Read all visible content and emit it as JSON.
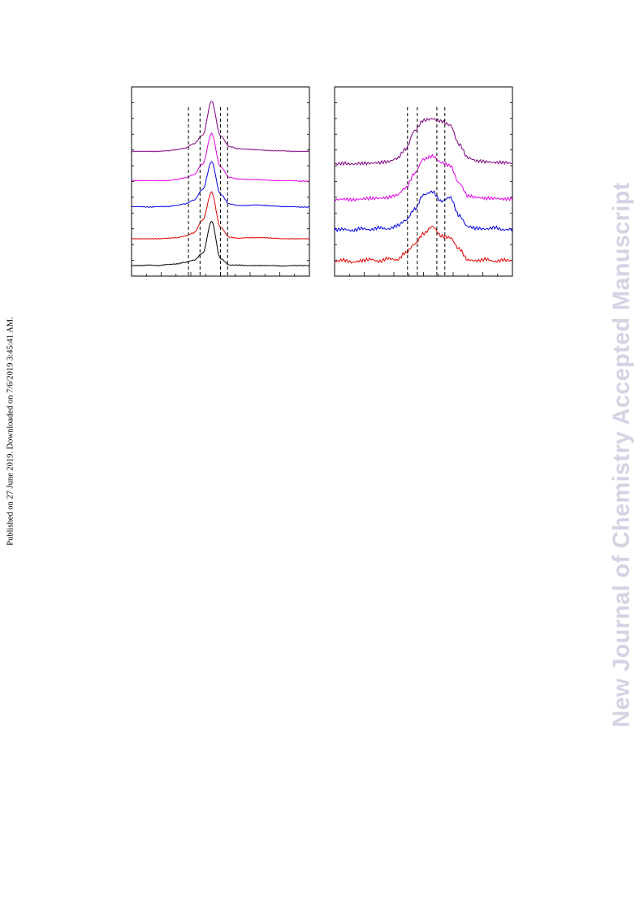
{
  "side_note": "Published on 27 June 2019. Downloaded on 7/6/2019 3:45:41 AM.",
  "watermark": "New Journal of Chemistry Accepted Manuscript",
  "chart_data": [
    {
      "type": "line",
      "title": "",
      "xlabel": "",
      "ylabel": "",
      "x": [
        0,
        5,
        10,
        15,
        20,
        25,
        30,
        35,
        40,
        45,
        50,
        55,
        60,
        65,
        70,
        75,
        80,
        85,
        90,
        95,
        100
      ],
      "reference_lines_x": [
        32,
        38.5,
        50,
        54
      ],
      "grid": false,
      "legend": "none",
      "series": [
        {
          "color": "#000000",
          "values": [
            0.3,
            0.3,
            0.4,
            0.3,
            0.5,
            0.6,
            0.9,
            1.3,
            2.6,
            8.6,
            1.6,
            0.4,
            0.4,
            0.3,
            0.3,
            0.3,
            0.3,
            0.2,
            0.3,
            0.3,
            0.3
          ]
        },
        {
          "color": "#e00000",
          "values": [
            0.3,
            0.3,
            0.3,
            0.3,
            0.4,
            0.5,
            0.8,
            1.4,
            3.8,
            9.0,
            2.4,
            0.6,
            0.4,
            0.5,
            0.5,
            0.5,
            0.4,
            0.3,
            0.3,
            0.3,
            0.3
          ]
        },
        {
          "color": "#0000e0",
          "values": [
            0.4,
            0.4,
            0.3,
            0.4,
            0.4,
            0.6,
            0.9,
            1.6,
            3.6,
            8.8,
            2.7,
            0.9,
            0.6,
            0.6,
            0.7,
            0.6,
            0.5,
            0.4,
            0.4,
            0.3,
            0.3
          ]
        },
        {
          "color": "#e000e0",
          "values": [
            0.4,
            0.4,
            0.4,
            0.4,
            0.4,
            0.6,
            0.9,
            1.5,
            3.5,
            9.2,
            3.0,
            1.0,
            0.7,
            0.6,
            0.6,
            0.5,
            0.4,
            0.4,
            0.4,
            0.3,
            0.3
          ]
        },
        {
          "color": "#800080",
          "values": [
            0.4,
            0.4,
            0.4,
            0.4,
            0.5,
            0.7,
            1.0,
            1.8,
            3.4,
            9.8,
            3.3,
            1.3,
            0.9,
            0.8,
            0.7,
            0.6,
            0.5,
            0.5,
            0.4,
            0.4,
            0.4
          ]
        }
      ]
    },
    {
      "type": "line",
      "title": "",
      "xlabel": "",
      "ylabel": "",
      "x": [
        0,
        5,
        10,
        15,
        20,
        25,
        30,
        35,
        40,
        45,
        50,
        55,
        60,
        65,
        70,
        75,
        80,
        85,
        90,
        95,
        100
      ],
      "reference_lines_x": [
        41,
        46.5,
        57.5,
        62
      ],
      "grid": false,
      "legend": "none",
      "series": [
        {
          "color": "#e00000",
          "values": [
            0.4,
            0.6,
            0.3,
            0.5,
            0.7,
            0.4,
            0.8,
            0.6,
            1.5,
            2.6,
            3.9,
            4.8,
            3.6,
            3.4,
            2.0,
            0.6,
            0.5,
            0.7,
            0.4,
            0.6,
            0.5
          ]
        },
        {
          "color": "#0000e0",
          "values": [
            0.4,
            0.5,
            0.3,
            0.6,
            0.4,
            0.7,
            0.5,
            0.9,
            1.6,
            3.0,
            4.8,
            5.2,
            4.0,
            4.5,
            2.2,
            0.8,
            0.6,
            0.5,
            0.7,
            0.4,
            0.5
          ]
        },
        {
          "color": "#e000e0",
          "values": [
            0.3,
            0.4,
            0.3,
            0.4,
            0.5,
            0.5,
            0.6,
            0.9,
            1.8,
            3.6,
            5.4,
            5.8,
            5.0,
            4.6,
            2.4,
            0.8,
            0.6,
            0.5,
            0.5,
            0.4,
            0.4
          ]
        },
        {
          "color": "#800080",
          "values": [
            0.3,
            0.4,
            0.3,
            0.4,
            0.4,
            0.5,
            0.6,
            1.0,
            2.2,
            4.5,
            5.8,
            6.0,
            5.7,
            5.2,
            2.8,
            1.1,
            0.7,
            0.6,
            0.5,
            0.5,
            0.4
          ]
        }
      ]
    }
  ]
}
